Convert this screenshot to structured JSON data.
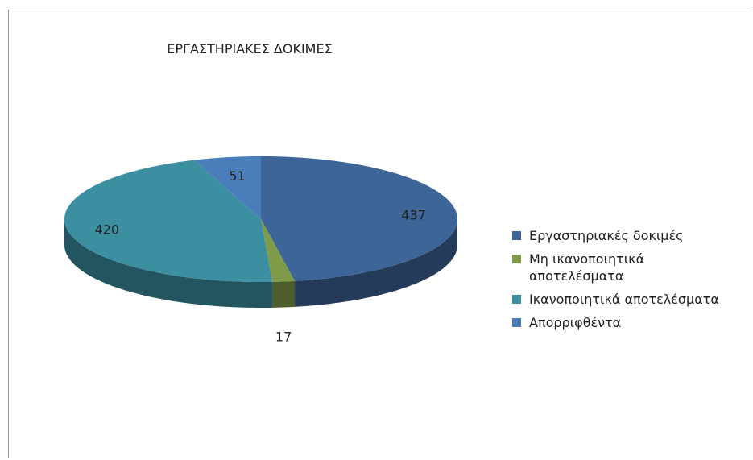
{
  "chart_data": {
    "type": "pie",
    "title": "ΕΡΓΑΣΤΗΡΙΑΚΕΣ ΔΟΚΙΜΕΣ",
    "categories": [
      "Εργαστηριακές δοκιμές",
      "Μη ικανοποιητικά αποτελέσματα",
      "Ικανοποιητικά αποτελέσματα",
      "Απορριφθέντα"
    ],
    "values": [
      437,
      17,
      420,
      51
    ],
    "colors": [
      "#3d6597",
      "#7f9a48",
      "#3b8fa1",
      "#4a7ebb"
    ],
    "legend": "right"
  }
}
